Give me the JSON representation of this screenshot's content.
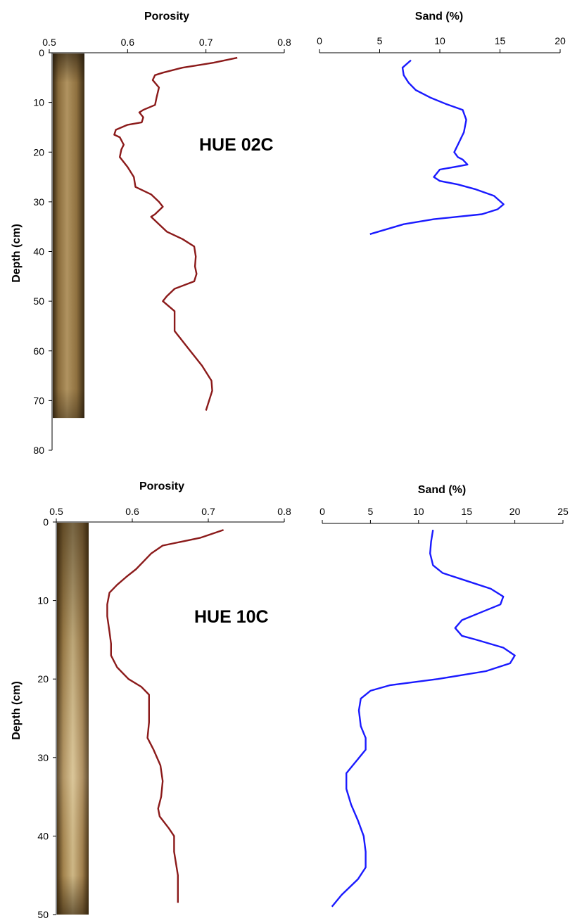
{
  "colors": {
    "porosity": "#8b1a1a",
    "sand": "#1a1aff",
    "axis": "#000000"
  },
  "chart_data": [
    {
      "type": "line",
      "core_label": "HUE 02C",
      "core_photo": true,
      "porosity_axis": {
        "title": "Porosity",
        "range": [
          0.5,
          0.8
        ],
        "ticks": [
          "0.5",
          "0.6",
          "0.7",
          "0.8"
        ],
        "tick_values": [
          0.5,
          0.6,
          0.7,
          0.8
        ]
      },
      "sand_axis": {
        "title": "Sand (%)",
        "range": [
          0,
          20
        ],
        "ticks": [
          "0",
          "5",
          "10",
          "15",
          "20"
        ],
        "tick_values": [
          0,
          5,
          10,
          15,
          20
        ]
      },
      "depth_axis": {
        "title": "Depth (cm)",
        "range": [
          0,
          80
        ],
        "inverted": true,
        "ticks": [
          "0",
          "10",
          "20",
          "30",
          "40",
          "50",
          "60",
          "70",
          "80"
        ],
        "tick_values": [
          0,
          10,
          20,
          30,
          40,
          50,
          60,
          70,
          80
        ]
      },
      "core_bottom_depth": 73.5,
      "series": [
        {
          "name": "Porosity",
          "x": [
            0.74,
            0.71,
            0.69,
            0.67,
            0.645,
            0.635,
            0.632,
            0.64,
            0.637,
            0.635,
            0.62,
            0.615,
            0.62,
            0.618,
            0.6,
            0.585,
            0.583,
            0.59,
            0.595,
            0.592,
            0.59,
            0.6,
            0.608,
            0.61,
            0.63,
            0.64,
            0.645,
            0.635,
            0.63,
            0.64,
            0.65,
            0.67,
            0.685,
            0.687,
            0.686,
            0.688,
            0.685,
            0.66,
            0.65,
            0.645,
            0.66,
            0.66,
            0.66,
            0.675,
            0.695,
            0.707,
            0.708,
            0.7
          ],
          "y": [
            1,
            2,
            2.5,
            3,
            4,
            4.5,
            5.5,
            7,
            9,
            10.5,
            11.5,
            12,
            13,
            14,
            14.5,
            15.5,
            16.5,
            17,
            18.5,
            19.5,
            21,
            23,
            25,
            27,
            28.5,
            30,
            31,
            32.5,
            33,
            34.5,
            36,
            37.5,
            39,
            41,
            43,
            44.5,
            46,
            47.5,
            49,
            50,
            52,
            54,
            56,
            59,
            63,
            66,
            68,
            72
          ]
        },
        {
          "name": "Sand",
          "x": [
            7.6,
            6.9,
            7.0,
            7.4,
            8.0,
            9.2,
            10.5,
            11.9,
            12.2,
            12.0,
            11.6,
            11.2,
            11.5,
            11.9,
            12.3,
            11.2,
            10.0,
            9.5,
            10.0,
            11.5,
            13.0,
            14.5,
            15.3,
            14.8,
            13.5,
            11.5,
            9.5,
            7.0,
            4.2
          ],
          "y": [
            1.5,
            3,
            4.5,
            6,
            7.5,
            9,
            10.3,
            11.5,
            13.5,
            16,
            18,
            20,
            21,
            21.5,
            22.5,
            23,
            23.5,
            25,
            25.8,
            26.5,
            27.5,
            28.8,
            30.5,
            31.5,
            32.5,
            33,
            33.5,
            34.5,
            36.5
          ]
        }
      ]
    },
    {
      "type": "line",
      "core_label": "HUE 10C",
      "core_photo": true,
      "porosity_axis": {
        "title": "Porosity",
        "range": [
          0.5,
          0.8
        ],
        "ticks": [
          "0.5",
          "0.6",
          "0.7",
          "0.8"
        ],
        "tick_values": [
          0.5,
          0.6,
          0.7,
          0.8
        ]
      },
      "sand_axis": {
        "title": "Sand (%)",
        "range": [
          0,
          25
        ],
        "ticks": [
          "0",
          "5",
          "10",
          "15",
          "20",
          "25"
        ],
        "tick_values": [
          0,
          5,
          10,
          15,
          20,
          25
        ]
      },
      "depth_axis": {
        "title": "Depth (cm)",
        "range": [
          0,
          50
        ],
        "inverted": true,
        "ticks": [
          "0",
          "10",
          "20",
          "30",
          "40",
          "50"
        ],
        "tick_values": [
          0,
          10,
          20,
          30,
          40,
          50
        ]
      },
      "core_bottom_depth": 50,
      "series": [
        {
          "name": "Porosity",
          "x": [
            0.72,
            0.69,
            0.665,
            0.64,
            0.625,
            0.615,
            0.605,
            0.592,
            0.58,
            0.57,
            0.567,
            0.567,
            0.57,
            0.572,
            0.572,
            0.58,
            0.595,
            0.612,
            0.622,
            0.622,
            0.622,
            0.621,
            0.62,
            0.628,
            0.637,
            0.64,
            0.638,
            0.634,
            0.636,
            0.648,
            0.655,
            0.655,
            0.66,
            0.66
          ],
          "y": [
            1,
            2,
            2.5,
            3,
            4,
            5,
            6,
            7,
            8,
            9,
            10.5,
            12,
            14,
            15.5,
            17,
            18.5,
            20,
            21,
            22,
            24,
            25.5,
            26.5,
            27.5,
            29,
            31,
            33,
            35,
            36.5,
            37.5,
            39,
            40,
            42,
            45,
            48.5
          ]
        },
        {
          "name": "Sand",
          "x": [
            11.5,
            11.3,
            11.2,
            11.5,
            12.5,
            15,
            17.5,
            18.8,
            18.5,
            16.5,
            14.5,
            13.8,
            14.5,
            16,
            18.8,
            20,
            19.5,
            17,
            12,
            7,
            5,
            4,
            3.8,
            4,
            4.5,
            4.5,
            3.5,
            2.5,
            2.5,
            3,
            3.7,
            4.3,
            4.5,
            4.5,
            3.7,
            2,
            1
          ],
          "y": [
            1,
            2.5,
            4,
            5.5,
            6.5,
            7.5,
            8.5,
            9.5,
            10.5,
            11.5,
            12.5,
            13.5,
            14.5,
            15,
            16,
            17,
            18,
            19,
            20,
            20.8,
            21.5,
            22.5,
            24,
            26,
            27.5,
            29,
            30.5,
            32,
            34,
            36,
            38,
            40,
            42,
            44,
            45.5,
            47.5,
            49
          ]
        }
      ]
    }
  ]
}
